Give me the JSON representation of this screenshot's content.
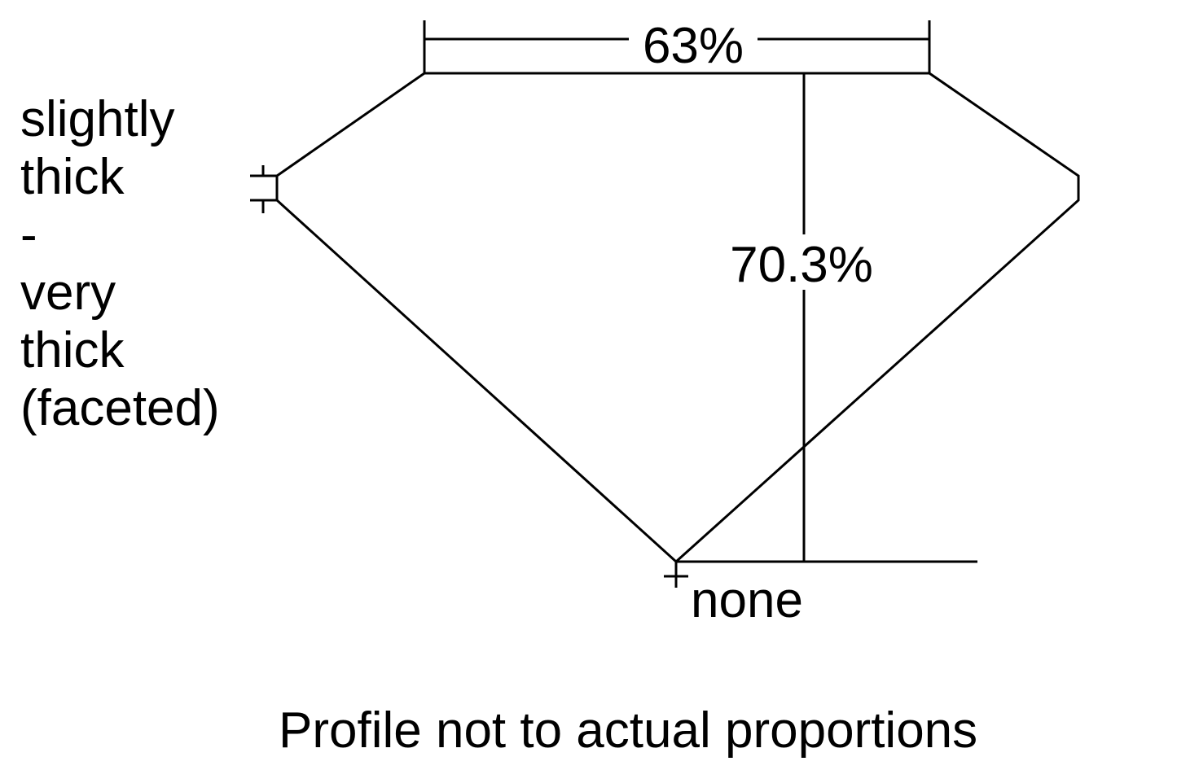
{
  "table_percent": "63%",
  "depth_percent": "70.3%",
  "culet": "none",
  "girdle_lines": [
    "slightly",
    "thick",
    "-",
    "very",
    "thick",
    "(faceted)"
  ],
  "caption": "Profile not to actual proportions",
  "stroke_color": "#000000"
}
